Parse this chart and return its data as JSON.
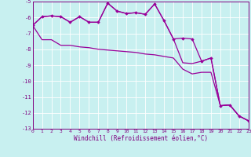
{
  "title": "",
  "xlabel": "Windchill (Refroidissement éolien,°C)",
  "bg_color": "#c8f0f0",
  "line_color": "#990099",
  "grid_color": "#ffffff",
  "ylim": [
    -13,
    -5
  ],
  "xlim": [
    0,
    23
  ],
  "yticks": [
    -13,
    -12,
    -11,
    -10,
    -9,
    -8,
    -7,
    -6,
    -5
  ],
  "xticks": [
    0,
    1,
    2,
    3,
    4,
    5,
    6,
    7,
    8,
    9,
    10,
    11,
    12,
    13,
    14,
    15,
    16,
    17,
    18,
    19,
    20,
    21,
    22,
    23
  ],
  "line1_x": [
    0,
    1,
    2,
    3,
    4,
    5,
    6,
    7,
    8,
    9,
    10,
    11,
    12,
    13,
    14,
    15,
    16,
    17,
    18,
    19,
    20,
    21,
    22,
    23
  ],
  "line1_y": [
    -6.5,
    -5.95,
    -5.9,
    -5.95,
    -6.3,
    -5.95,
    -6.3,
    -6.3,
    -5.1,
    -5.6,
    -5.75,
    -5.7,
    -5.8,
    -5.15,
    -6.2,
    -7.35,
    -7.3,
    -7.35,
    -8.75,
    -8.55,
    -11.55,
    -11.5,
    -12.2,
    -12.5
  ],
  "line2_x": [
    0,
    1,
    2,
    3,
    4,
    5,
    6,
    7,
    8,
    9,
    10,
    11,
    12,
    13,
    14,
    15,
    16,
    17,
    18,
    19,
    20,
    21,
    22,
    23
  ],
  "line2_y": [
    -6.5,
    -5.95,
    -5.9,
    -5.95,
    -6.3,
    -5.95,
    -6.3,
    -6.3,
    -5.1,
    -5.6,
    -5.75,
    -5.7,
    -5.8,
    -5.15,
    -6.2,
    -7.35,
    -8.85,
    -8.9,
    -8.75,
    -8.55,
    -11.55,
    -11.5,
    -12.2,
    -12.5
  ],
  "line3_x": [
    0,
    1,
    2,
    3,
    4,
    5,
    6,
    7,
    8,
    9,
    10,
    11,
    12,
    13,
    14,
    15,
    16,
    17,
    18,
    19,
    20,
    21,
    22,
    23
  ],
  "line3_y": [
    -6.5,
    -7.4,
    -7.4,
    -7.75,
    -7.75,
    -7.85,
    -7.9,
    -8.0,
    -8.05,
    -8.1,
    -8.15,
    -8.2,
    -8.3,
    -8.35,
    -8.45,
    -8.55,
    -9.25,
    -9.55,
    -9.45,
    -9.45,
    -11.55,
    -11.5,
    -12.2,
    -12.5
  ]
}
